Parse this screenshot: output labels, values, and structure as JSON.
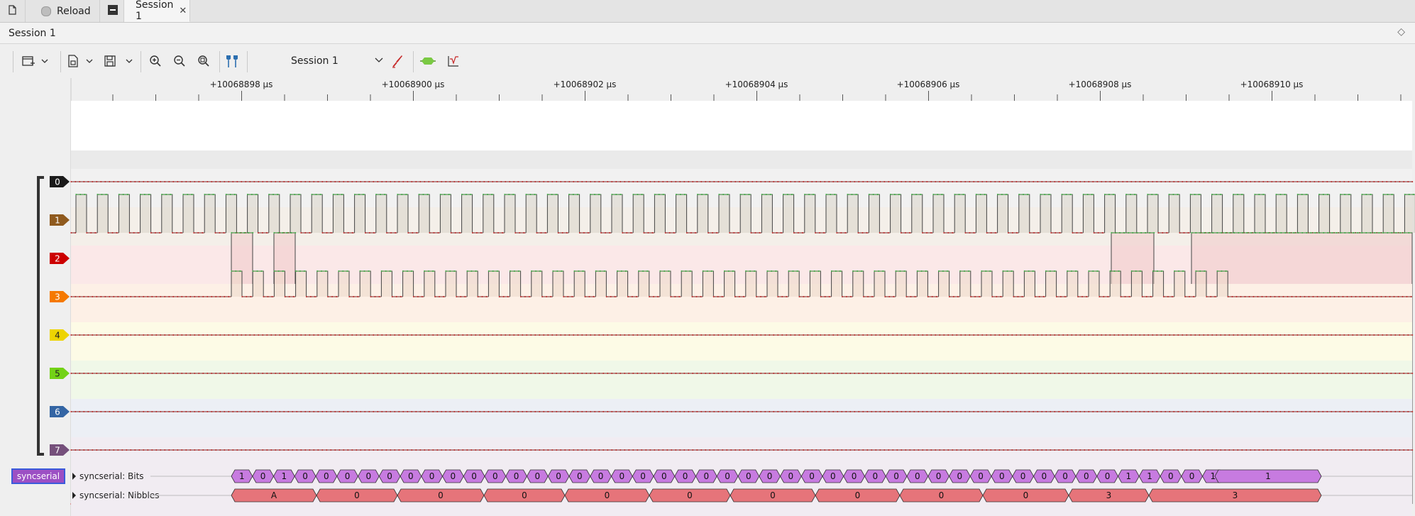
{
  "tabs": [
    {
      "label": "",
      "icon": "new-document-icon"
    },
    {
      "label": "Reload",
      "icon": "reload-icon"
    },
    {
      "label": "",
      "icon": "window-icon"
    },
    {
      "label": "Session 1",
      "icon": "close-icon",
      "active": true
    }
  ],
  "session_strip": {
    "title": "Session 1"
  },
  "toolbar": {
    "session_selector": "Session 1",
    "icons": [
      "add-view-icon",
      "chevron-down-icon",
      "open-file-icon",
      "chevron-down-icon",
      "save-icon",
      "chevron-down-icon",
      "zoom-in-icon",
      "zoom-out-icon",
      "zoom-fit-icon",
      "cursor-icon",
      "probe-icon",
      "decoder-icon",
      "math-icon"
    ]
  },
  "ruler": {
    "unit": "µs",
    "labels": [
      "+10068898 µs",
      "+10068900 µs",
      "+10068902 µs",
      "+10068904 µs",
      "+10068906 µs",
      "+10068908 µs",
      "+10068910 µs"
    ]
  },
  "channels": [
    {
      "id": "0",
      "color": "#1a1a1a",
      "bg": "#f1f1f1"
    },
    {
      "id": "1",
      "color": "#8f5a1e",
      "bg": "#f4efe9"
    },
    {
      "id": "2",
      "color": "#cc0000",
      "bg": "#fbe8e8"
    },
    {
      "id": "3",
      "color": "#f57900",
      "bg": "#fdf0e6"
    },
    {
      "id": "4",
      "color": "#edd400",
      "bg": "#fdfbe6"
    },
    {
      "id": "5",
      "color": "#73d216",
      "bg": "#f0f8e8"
    },
    {
      "id": "6",
      "color": "#3465a4",
      "bg": "#eceff5"
    },
    {
      "id": "7",
      "color": "#75507b",
      "bg": "#f1ecf2"
    }
  ],
  "decoder": {
    "name": "syncserial",
    "rows": [
      {
        "label": "syncserial: Bits",
        "values": [
          "1",
          "0",
          "1",
          "0",
          "0",
          "0",
          "0",
          "0",
          "0",
          "0",
          "0",
          "0",
          "0",
          "0",
          "0",
          "0",
          "0",
          "0",
          "0",
          "0",
          "0",
          "0",
          "0",
          "0",
          "0",
          "0",
          "0",
          "0",
          "0",
          "0",
          "0",
          "0",
          "0",
          "0",
          "0",
          "0",
          "0",
          "0",
          "0",
          "0",
          "0",
          "0",
          "1",
          "1",
          "0",
          "0",
          "1",
          "1"
        ]
      },
      {
        "label": "syncserial: Nibbles",
        "values": [
          "A",
          "0",
          "0",
          "0",
          "0",
          "0",
          "0",
          "0",
          "0",
          "0",
          "3",
          "3"
        ]
      }
    ]
  },
  "colors": {
    "decoder_label_bg": "#9c4fc4",
    "bits_fill": "#c77be0",
    "nibbles_fill": "#e6747a"
  }
}
